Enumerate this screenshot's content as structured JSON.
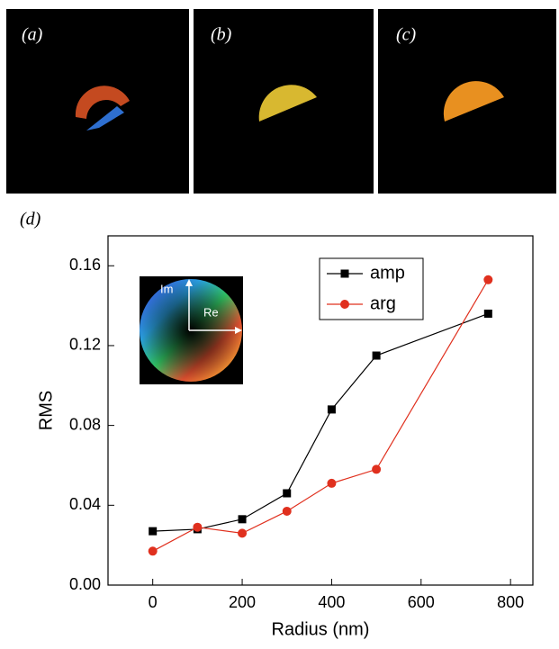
{
  "panels": [
    {
      "label": "(a)"
    },
    {
      "label": "(b)"
    },
    {
      "label": "(c)"
    }
  ],
  "chart_data": {
    "type": "line",
    "panel_label": "(d)",
    "x_label": "Radius (nm)",
    "y_label": "RMS",
    "x": [
      0,
      100,
      200,
      300,
      400,
      500,
      750
    ],
    "series": [
      {
        "name": "amp",
        "color": "#000000",
        "marker": "square",
        "values": [
          0.027,
          0.028,
          0.033,
          0.046,
          0.088,
          0.115,
          0.136
        ]
      },
      {
        "name": "arg",
        "color": "#e0301e",
        "marker": "circle",
        "values": [
          0.017,
          0.029,
          0.026,
          0.037,
          0.051,
          0.058,
          0.153
        ]
      }
    ],
    "xlim": [
      -100,
      850
    ],
    "xticks": [
      0,
      200,
      400,
      600,
      800
    ],
    "ylim": [
      0,
      0.175
    ],
    "yticks": [
      {
        "value": 0,
        "label": "0.00"
      },
      0.04,
      0.08,
      0.12,
      0.16
    ],
    "legend": "top-right",
    "inset": {
      "labels": [
        "Im",
        "Re"
      ]
    }
  }
}
